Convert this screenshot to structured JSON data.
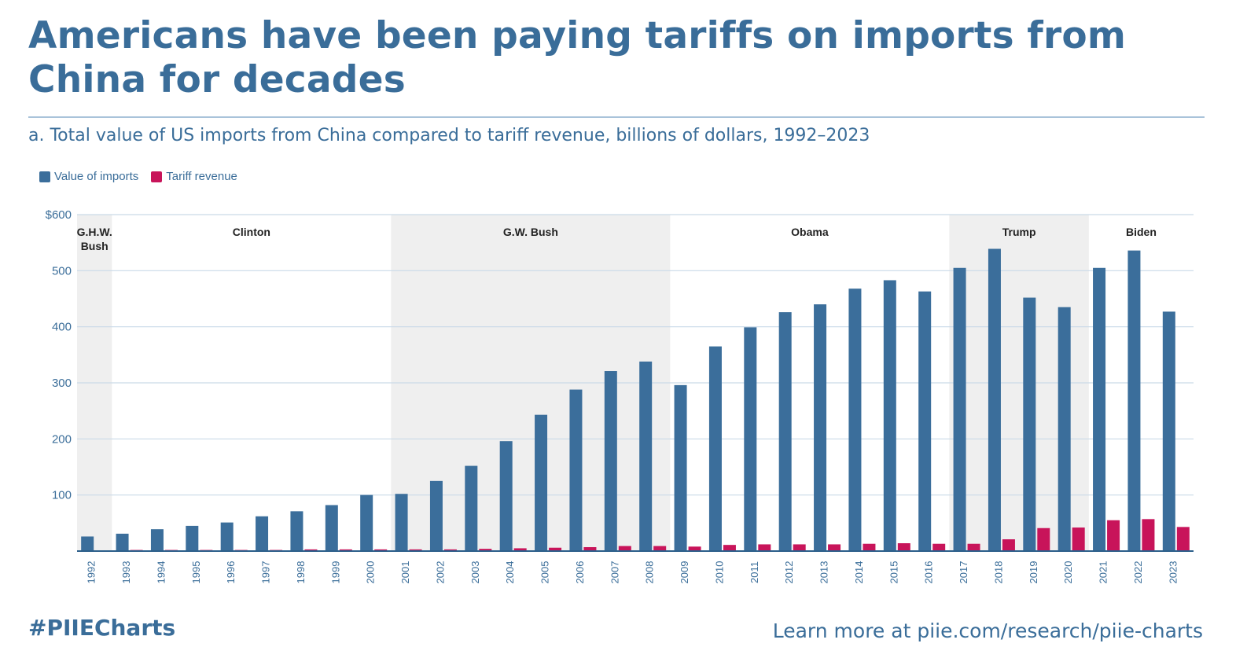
{
  "title": "Americans have been paying tariffs on imports from China for decades",
  "subtitle": "a. Total value of US imports from China compared to tariff revenue, billions of dollars, 1992–2023",
  "footer": {
    "hashtag": "#PIIECharts",
    "link": "Learn more at piie.com/research/piie-charts"
  },
  "colors": {
    "title": "#3a6d99",
    "imports": "#3b6e9b",
    "tariff": "#c8145a",
    "band": "#efefef",
    "grid": "#c9d9e8"
  },
  "chart_data": {
    "type": "bar",
    "ylim": [
      0,
      600
    ],
    "yticks": [
      {
        "value": 100,
        "label": "100"
      },
      {
        "value": 200,
        "label": "200"
      },
      {
        "value": 300,
        "label": "300"
      },
      {
        "value": 400,
        "label": "400"
      },
      {
        "value": 500,
        "label": "500"
      },
      {
        "value": 600,
        "label": "$600"
      }
    ],
    "grid": true,
    "legend_position": "top-left",
    "categories": [
      "1992",
      "1993",
      "1994",
      "1995",
      "1996",
      "1997",
      "1998",
      "1999",
      "2000",
      "2001",
      "2002",
      "2003",
      "2004",
      "2005",
      "2006",
      "2007",
      "2008",
      "2009",
      "2010",
      "2011",
      "2012",
      "2013",
      "2014",
      "2015",
      "2016",
      "2017",
      "2018",
      "2019",
      "2020",
      "2021",
      "2022",
      "2023"
    ],
    "series": [
      {
        "name": "Value of imports",
        "values": [
          26,
          31,
          39,
          45,
          51,
          62,
          71,
          82,
          100,
          102,
          125,
          152,
          196,
          243,
          288,
          321,
          338,
          296,
          365,
          399,
          426,
          440,
          468,
          483,
          463,
          505,
          539,
          452,
          435,
          505,
          536,
          427
        ]
      },
      {
        "name": "Tariff revenue",
        "values": [
          1,
          2,
          2,
          2,
          2,
          2,
          3,
          3,
          3,
          3,
          3,
          4,
          5,
          6,
          7,
          9,
          9,
          8,
          11,
          12,
          12,
          12,
          13,
          14,
          13,
          13,
          21,
          41,
          42,
          55,
          57,
          43
        ]
      }
    ],
    "administrations": [
      {
        "name": "G.H.W. Bush",
        "start": "1992",
        "end": "1992",
        "shaded": true
      },
      {
        "name": "Clinton",
        "start": "1993",
        "end": "2000",
        "shaded": false
      },
      {
        "name": "G.W. Bush",
        "start": "2001",
        "end": "2008",
        "shaded": true
      },
      {
        "name": "Obama",
        "start": "2009",
        "end": "2016",
        "shaded": false
      },
      {
        "name": "Trump",
        "start": "2017",
        "end": "2020",
        "shaded": true
      },
      {
        "name": "Biden",
        "start": "2021",
        "end": "2023",
        "shaded": false
      }
    ]
  }
}
